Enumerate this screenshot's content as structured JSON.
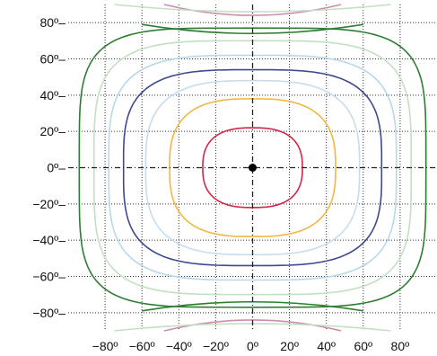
{
  "chart_data": {
    "type": "line",
    "title": "",
    "xlabel": "",
    "ylabel": "",
    "xlim": [
      -100,
      100
    ],
    "ylim": [
      -90,
      90
    ],
    "grid": true,
    "x_ticks": [
      {
        "value": -80,
        "label": "−80º"
      },
      {
        "value": -60,
        "label": "−60º"
      },
      {
        "value": -40,
        "label": "−40º"
      },
      {
        "value": -20,
        "label": "−20º"
      },
      {
        "value": 0,
        "label": "0º"
      },
      {
        "value": 20,
        "label": "20º"
      },
      {
        "value": 40,
        "label": "40º"
      },
      {
        "value": 60,
        "label": "60º"
      },
      {
        "value": 80,
        "label": "80º"
      }
    ],
    "y_ticks": [
      {
        "value": 80,
        "label": "80º–"
      },
      {
        "value": 60,
        "label": "60º–"
      },
      {
        "value": 40,
        "label": "40º–"
      },
      {
        "value": 20,
        "label": "20º–"
      },
      {
        "value": 0,
        "label": "0º–"
      },
      {
        "value": -20,
        "label": "−20º–"
      },
      {
        "value": -40,
        "label": "−40º–"
      },
      {
        "value": -60,
        "label": "−60º–"
      },
      {
        "value": -80,
        "label": "−80º–"
      }
    ],
    "center_point": {
      "x": 0,
      "y": 0,
      "color": "#000000"
    },
    "closed_contours": [
      {
        "color": "#d02848",
        "rx": 27,
        "ry": 22,
        "n": 2.6
      },
      {
        "color": "#f0b840",
        "rx": 45,
        "ry": 38,
        "n": 2.8
      },
      {
        "color": "#c6ddf0",
        "rx": 58,
        "ry": 48,
        "n": 3.0
      },
      {
        "color": "#404890",
        "rx": 70,
        "ry": 54,
        "n": 3.4
      },
      {
        "color": "#b8d8ea",
        "rx": 78,
        "ry": 62,
        "n": 3.6
      },
      {
        "color": "#c3e0c3",
        "rx": 86,
        "ry": 70,
        "n": 4.0
      },
      {
        "color": "#2e7d32",
        "rx": 94,
        "ry": 77,
        "n": 4.6
      }
    ],
    "polar_arcs": [
      {
        "color": "#2e7d32",
        "side": "top",
        "half_width": 60,
        "edge_y": 79,
        "mid_y": 74
      },
      {
        "color": "#2e7d32",
        "side": "bottom",
        "half_width": 60,
        "edge_y": -79,
        "mid_y": -74
      },
      {
        "color": "#d08ab0",
        "side": "top",
        "half_width": 48,
        "edge_y": 90,
        "mid_y": 84
      },
      {
        "color": "#d08ab0",
        "side": "bottom",
        "half_width": 48,
        "edge_y": -90,
        "mid_y": -84
      },
      {
        "color": "#c3e0c3",
        "side": "top",
        "half_width": 75,
        "edge_y": 90,
        "mid_y": 86
      },
      {
        "color": "#c3e0c3",
        "side": "bottom",
        "half_width": 75,
        "edge_y": -90,
        "mid_y": -86
      }
    ]
  }
}
